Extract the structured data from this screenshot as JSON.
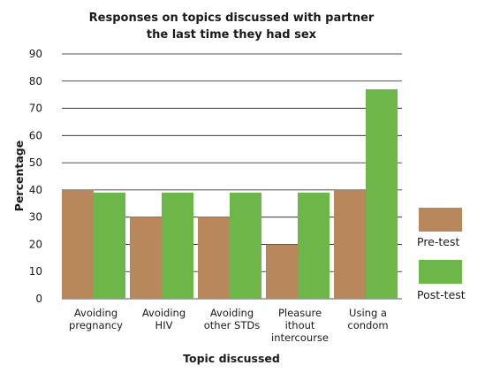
{
  "colors": {
    "pre": "#b8875c",
    "post": "#6db64a",
    "grid": "#1a1a1a"
  },
  "chart_data": {
    "type": "bar",
    "title": [
      "Responses on topics discussed with partner",
      "the last time they had sex"
    ],
    "xlabel": "Topic discussed",
    "ylabel": "Percentage",
    "ylim": [
      0,
      90
    ],
    "yticks": [
      0,
      10,
      20,
      30,
      40,
      50,
      60,
      70,
      80,
      90
    ],
    "grid": true,
    "legend_position": "right",
    "categories": [
      [
        "Avoiding",
        "pregnancy"
      ],
      [
        "Avoiding",
        "HIV"
      ],
      [
        "Avoiding",
        "other STDs"
      ],
      [
        "Pleasure",
        "ithout",
        "intercourse"
      ],
      [
        "Using a",
        "condom"
      ]
    ],
    "series": [
      {
        "name": "Pre-test",
        "values": [
          40,
          30,
          30,
          20,
          40
        ]
      },
      {
        "name": "Post-test",
        "values": [
          39,
          39,
          39,
          39,
          77
        ]
      }
    ]
  }
}
